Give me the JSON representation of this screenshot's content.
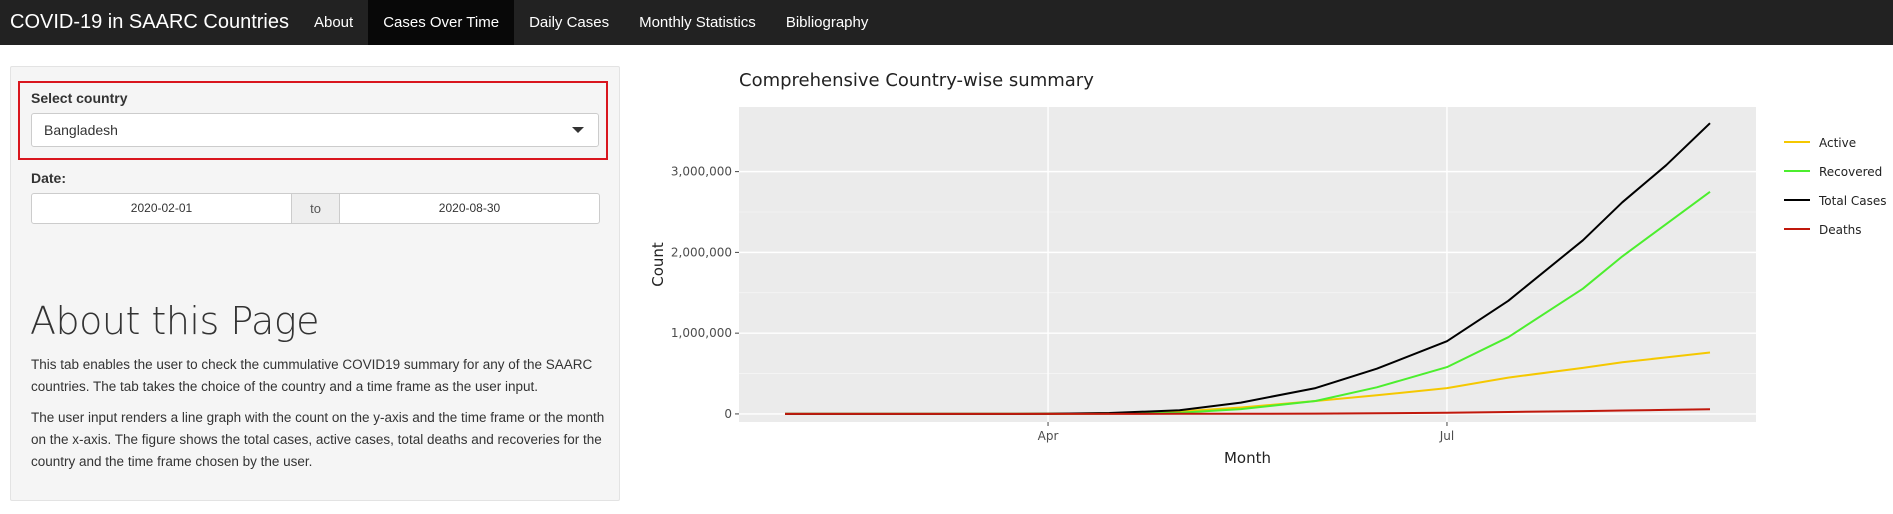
{
  "navbar": {
    "brand": "COVID-19 in SAARC Countries",
    "items": [
      {
        "label": "About",
        "active": false
      },
      {
        "label": "Cases Over Time",
        "active": true
      },
      {
        "label": "Daily Cases",
        "active": false
      },
      {
        "label": "Monthly Statistics",
        "active": false
      },
      {
        "label": "Bibliography",
        "active": false
      }
    ]
  },
  "sidebar": {
    "country_label": "Select country",
    "country_value": "Bangladesh",
    "date_label": "Date:",
    "date_start": "2020-02-01",
    "date_sep": "to",
    "date_end": "2020-08-30",
    "about_title": "About this Page",
    "para1": "This tab enables the user to check the cummulative COVID19 summary for any of the SAARC countries. The tab takes the choice of the country and a time frame as the user input.",
    "para2": "The user input renders a line graph with the count on the y-axis and the time frame or the month on the x-axis. The figure shows the total cases, active cases, total deaths and recoveries for the country and the time frame chosen by the user."
  },
  "chart_data": {
    "type": "line",
    "title": "Comprehensive Country-wise summary",
    "xlabel": "Month",
    "ylabel": "Count",
    "xlim": [
      "2020-02-01",
      "2020-08-30"
    ],
    "ylim": [
      -100000,
      3800000
    ],
    "x_ticks": [
      {
        "date": "2020-04-01",
        "label": "Apr"
      },
      {
        "date": "2020-07-01",
        "label": "Jul"
      }
    ],
    "y_ticks": [
      {
        "value": 0,
        "label": "0"
      },
      {
        "value": 1000000,
        "label": "1,000,000"
      },
      {
        "value": 2000000,
        "label": "2,000,000"
      },
      {
        "value": 3000000,
        "label": "3,000,000"
      }
    ],
    "legend_position": "right",
    "background": "#ebebeb",
    "grid": true,
    "x": [
      "2020-02-01",
      "2020-03-01",
      "2020-04-01",
      "2020-04-15",
      "2020-05-01",
      "2020-05-15",
      "2020-06-01",
      "2020-06-15",
      "2020-07-01",
      "2020-07-15",
      "2020-08-01",
      "2020-08-10",
      "2020-08-20",
      "2020-08-30"
    ],
    "series": [
      {
        "name": "Active",
        "color": "#f5c800",
        "values": [
          0,
          0,
          1000,
          8000,
          30000,
          80000,
          160000,
          230000,
          320000,
          450000,
          570000,
          640000,
          700000,
          760000
        ]
      },
      {
        "name": "Recovered",
        "color": "#4cee2e",
        "values": [
          0,
          0,
          500,
          4000,
          15000,
          60000,
          160000,
          330000,
          580000,
          950000,
          1550000,
          1950000,
          2350000,
          2750000
        ]
      },
      {
        "name": "Total Cases",
        "color": "#000000",
        "values": [
          0,
          0,
          1500,
          12000,
          45000,
          140000,
          320000,
          560000,
          900000,
          1400000,
          2150000,
          2620000,
          3080000,
          3600000
        ]
      },
      {
        "name": "Deaths",
        "color": "#c0180c",
        "values": [
          0,
          0,
          100,
          500,
          1000,
          2000,
          4000,
          8000,
          15000,
          24000,
          35000,
          42000,
          50000,
          58000
        ]
      }
    ]
  }
}
